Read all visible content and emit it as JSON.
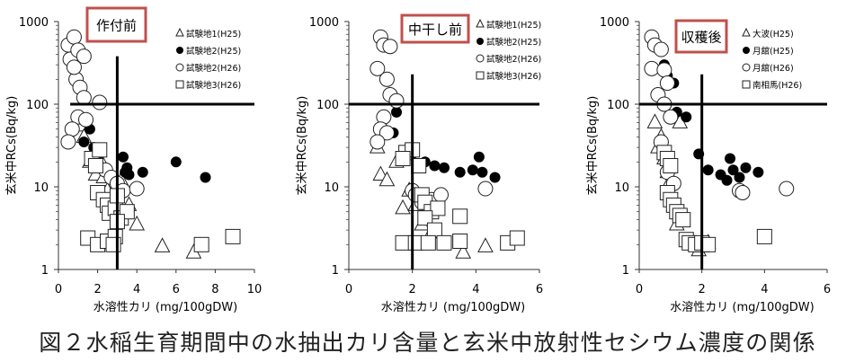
{
  "caption": "図２水稲生育期間中の水抽出カリ含量と玄米中放射性セシウム濃度の関係",
  "chart_data": [
    {
      "type": "scatter",
      "title": "作付前",
      "xlabel": "水溶性カリ (mg/100gDW)",
      "ylabel": "玄米中RCs(Bq/kg)",
      "xlim": [
        0,
        10
      ],
      "xticks": [
        0,
        2,
        4,
        6,
        8,
        10
      ],
      "ylim": [
        1,
        1000
      ],
      "yscale": "log",
      "yticks": [
        1,
        10,
        100,
        1000
      ],
      "reference_lines": {
        "x": 3,
        "y": 100
      },
      "legend_position": "top-right",
      "series": [
        {
          "name": "試験地1(H25)",
          "marker": "triangle",
          "points": [
            [
              1.1,
              55
            ],
            [
              1.3,
              40
            ],
            [
              1.6,
              20
            ],
            [
              1.9,
              14
            ],
            [
              2.1,
              22
            ],
            [
              2.3,
              13
            ],
            [
              2.5,
              9
            ],
            [
              2.8,
              7
            ],
            [
              3.2,
              12
            ],
            [
              3.6,
              6
            ],
            [
              4.0,
              3.5
            ],
            [
              5.3,
              1.9
            ],
            [
              6.9,
              1.6
            ]
          ]
        },
        {
          "name": "試験地2(H25)",
          "marker": "filled-circle",
          "points": [
            [
              1.3,
              35
            ],
            [
              1.6,
              50
            ],
            [
              1.8,
              30
            ],
            [
              2.1,
              25
            ],
            [
              3.3,
              23
            ],
            [
              3.4,
              15
            ],
            [
              3.5,
              17
            ],
            [
              3.6,
              14
            ],
            [
              4.3,
              15
            ],
            [
              6.0,
              20
            ],
            [
              7.5,
              13
            ]
          ]
        },
        {
          "name": "試験地2(H26)",
          "marker": "open-circle",
          "points": [
            [
              0.5,
              520
            ],
            [
              0.6,
              350
            ],
            [
              0.8,
              650
            ],
            [
              1.0,
              450
            ],
            [
              0.9,
              200
            ],
            [
              0.8,
              280
            ],
            [
              1.1,
              160
            ],
            [
              1.3,
              380
            ],
            [
              1.3,
              120
            ],
            [
              1.0,
              70
            ],
            [
              1.4,
              65
            ],
            [
              2.1,
              105
            ],
            [
              0.7,
              50
            ],
            [
              0.5,
              35
            ],
            [
              2.4,
              16
            ],
            [
              2.7,
              13
            ],
            [
              3.0,
              11
            ],
            [
              3.3,
              9
            ],
            [
              4.0,
              9.5
            ]
          ]
        },
        {
          "name": "試験地3(H26)",
          "marker": "open-square",
          "points": [
            [
              1.7,
              22
            ],
            [
              1.9,
              18
            ],
            [
              2.1,
              28
            ],
            [
              2.0,
              8.5
            ],
            [
              2.3,
              7
            ],
            [
              2.5,
              6
            ],
            [
              2.6,
              4.8
            ],
            [
              2.9,
              5.5
            ],
            [
              3.0,
              7.8
            ],
            [
              3.2,
              4.2
            ],
            [
              3.5,
              5.0
            ],
            [
              3.0,
              3.8
            ],
            [
              1.5,
              2.4
            ],
            [
              2.0,
              2.0
            ],
            [
              2.5,
              2.2
            ],
            [
              2.9,
              2.5
            ],
            [
              2.8,
              2.0
            ],
            [
              7.3,
              2.0
            ],
            [
              8.9,
              2.5
            ]
          ]
        }
      ]
    },
    {
      "type": "scatter",
      "title": "中干し前",
      "xlabel": "水溶性カリ (mg/100gDW)",
      "ylabel": "玄米中RCs(Bq/kg)",
      "xlim": [
        0,
        6
      ],
      "xticks": [
        0,
        2,
        4,
        6
      ],
      "ylim": [
        1,
        1000
      ],
      "yscale": "log",
      "yticks": [
        1,
        10,
        100,
        1000
      ],
      "reference_lines": {
        "x": 2,
        "y": 100
      },
      "legend_position": "top-right",
      "series": [
        {
          "name": "試験地1(H25)",
          "marker": "triangle",
          "points": [
            [
              0.9,
              30
            ],
            [
              1.0,
              14
            ],
            [
              1.2,
              12
            ],
            [
              1.5,
              20
            ],
            [
              1.7,
              5.5
            ],
            [
              1.9,
              9
            ],
            [
              2.1,
              6
            ],
            [
              2.3,
              3.5
            ],
            [
              2.6,
              2.8
            ],
            [
              3.6,
              1.6
            ],
            [
              4.3,
              1.9
            ]
          ]
        },
        {
          "name": "試験地2(H25)",
          "marker": "filled-circle",
          "points": [
            [
              1.4,
              45
            ],
            [
              1.5,
              80
            ],
            [
              2.0,
              25
            ],
            [
              2.4,
              20
            ],
            [
              2.7,
              18
            ],
            [
              3.0,
              17
            ],
            [
              3.5,
              15
            ],
            [
              3.9,
              16
            ],
            [
              4.1,
              23
            ],
            [
              4.2,
              15
            ],
            [
              4.6,
              13
            ]
          ]
        },
        {
          "name": "試験地2(H26)",
          "marker": "open-circle",
          "points": [
            [
              1.0,
              650
            ],
            [
              1.1,
              520
            ],
            [
              1.3,
              500
            ],
            [
              0.9,
              270
            ],
            [
              1.2,
              200
            ],
            [
              1.3,
              130
            ],
            [
              1.5,
              110
            ],
            [
              1.1,
              70
            ],
            [
              1.0,
              50
            ],
            [
              1.2,
              45
            ],
            [
              0.9,
              35
            ],
            [
              2.0,
              9
            ],
            [
              2.1,
              8
            ],
            [
              2.3,
              6.5
            ],
            [
              2.6,
              7
            ],
            [
              2.9,
              8
            ],
            [
              4.3,
              9.5
            ]
          ]
        },
        {
          "name": "試験地3(H26)",
          "marker": "open-square",
          "points": [
            [
              1.8,
              26
            ],
            [
              2.0,
              28
            ],
            [
              1.7,
              22
            ],
            [
              2.2,
              18
            ],
            [
              2.3,
              8
            ],
            [
              2.4,
              6.5
            ],
            [
              2.6,
              5
            ],
            [
              2.8,
              5.5
            ],
            [
              2.4,
              4.2
            ],
            [
              2.7,
              3.0
            ],
            [
              3.5,
              4.4
            ],
            [
              1.7,
              2.1
            ],
            [
              2.1,
              2.1
            ],
            [
              2.5,
              2.1
            ],
            [
              3.0,
              2.1
            ],
            [
              3.5,
              2.2
            ],
            [
              5.0,
              2.1
            ],
            [
              5.3,
              2.4
            ]
          ]
        }
      ]
    },
    {
      "type": "scatter",
      "title": "収穫後",
      "xlabel": "水溶性カリ (mg/100gDW)",
      "ylabel": "玄米中RCs(Bq/kg)",
      "xlim": [
        0,
        6
      ],
      "xticks": [
        0,
        2,
        4,
        6
      ],
      "ylim": [
        1,
        1000
      ],
      "yscale": "log",
      "yticks": [
        1,
        10,
        100,
        1000
      ],
      "reference_lines": {
        "x": 2,
        "y": 100
      },
      "legend_position": "top-right",
      "series": [
        {
          "name": "大波(H25)",
          "marker": "triangle",
          "points": [
            [
              0.5,
              60
            ],
            [
              0.6,
              30
            ],
            [
              0.7,
              40
            ],
            [
              0.8,
              22
            ],
            [
              0.9,
              15
            ],
            [
              1.0,
              12
            ],
            [
              1.1,
              6
            ],
            [
              1.2,
              3.5
            ],
            [
              1.3,
              60
            ],
            [
              1.9,
              1.7
            ],
            [
              2.0,
              1.9
            ],
            [
              2.2,
              2.1
            ]
          ]
        },
        {
          "name": "月舘(H25)",
          "marker": "filled-circle",
          "points": [
            [
              0.8,
              300
            ],
            [
              0.9,
              220
            ],
            [
              1.1,
              180
            ],
            [
              1.2,
              80
            ],
            [
              1.5,
              70
            ],
            [
              1.9,
              25
            ],
            [
              2.2,
              16
            ],
            [
              2.6,
              14
            ],
            [
              2.8,
              12
            ],
            [
              2.9,
              22
            ],
            [
              3.0,
              16
            ],
            [
              3.2,
              13
            ],
            [
              3.4,
              17
            ],
            [
              3.8,
              15
            ]
          ]
        },
        {
          "name": "月舘(H26)",
          "marker": "open-circle",
          "points": [
            [
              0.4,
              650
            ],
            [
              0.5,
              520
            ],
            [
              0.7,
              460
            ],
            [
              0.4,
              270
            ],
            [
              0.8,
              260
            ],
            [
              0.9,
              180
            ],
            [
              0.6,
              130
            ],
            [
              0.8,
              100
            ],
            [
              1.0,
              70
            ],
            [
              0.7,
              35
            ],
            [
              0.9,
              15
            ],
            [
              1.1,
              11
            ],
            [
              3.2,
              9
            ],
            [
              3.3,
              8.5
            ],
            [
              4.7,
              9.5
            ]
          ]
        },
        {
          "name": "南相馬(H26)",
          "marker": "open-square",
          "points": [
            [
              0.8,
              26
            ],
            [
              0.9,
              22
            ],
            [
              1.0,
              18
            ],
            [
              0.9,
              8.5
            ],
            [
              1.0,
              7
            ],
            [
              1.1,
              6
            ],
            [
              1.2,
              5
            ],
            [
              1.3,
              4.5
            ],
            [
              1.4,
              4
            ],
            [
              1.5,
              2.3
            ],
            [
              1.6,
              2.1
            ],
            [
              1.8,
              2.0
            ],
            [
              2.0,
              2.1
            ],
            [
              2.2,
              2.0
            ],
            [
              4.0,
              2.5
            ]
          ]
        }
      ]
    }
  ]
}
